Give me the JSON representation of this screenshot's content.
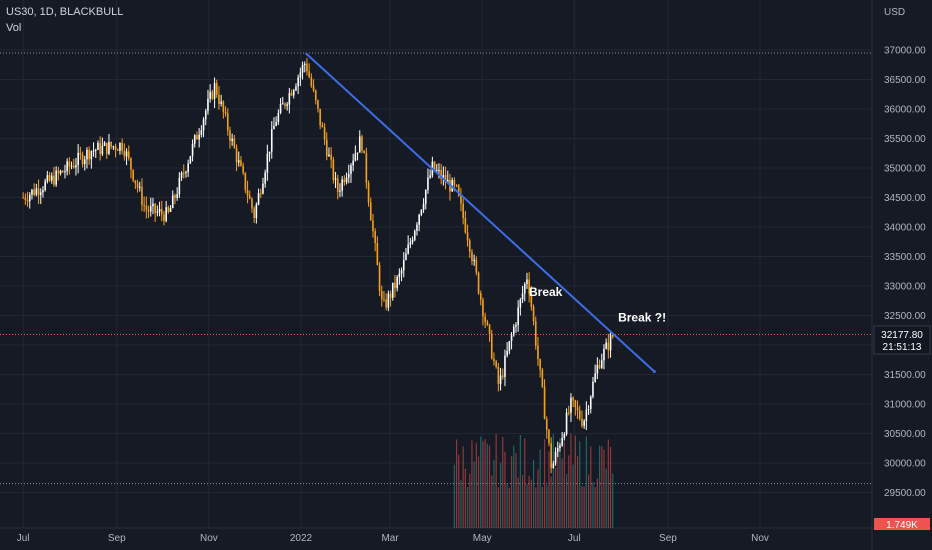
{
  "header": {
    "symbol_line": "US30, 1D, BLACKBULL",
    "volume_label": "Vol"
  },
  "price_axis": {
    "currency": "USD"
  },
  "last_price": {
    "value": "32177.80",
    "countdown": "21:51:13"
  },
  "volume_badge": "1.749K",
  "colors": {
    "background": "#161a25",
    "up": "#ffffff",
    "down": "#f7a21b",
    "trendline": "#3d6ee8",
    "vol_up": "#26a69a",
    "vol_down": "#ef5350"
  },
  "chart_data": {
    "type": "candlestick",
    "x_ticks": [
      "Jul",
      "Sep",
      "Nov",
      "2022",
      "Mar",
      "May",
      "Jul",
      "Sep",
      "Nov"
    ],
    "y_ticks": [
      "37000.00",
      "36500.00",
      "36000.00",
      "35500.00",
      "35000.00",
      "34500.00",
      "34000.00",
      "33500.00",
      "33000.00",
      "32500.00",
      "32000.00",
      "31500.00",
      "31000.00",
      "30500.00",
      "30000.00",
      "29500.00"
    ],
    "ylim": [
      29000,
      37400
    ],
    "price_path": [
      {
        "t": "2021-07-01",
        "p": 34500
      },
      {
        "t": "2021-07-20",
        "p": 34800
      },
      {
        "t": "2021-08-15",
        "p": 35300
      },
      {
        "t": "2021-09-05",
        "p": 35400
      },
      {
        "t": "2021-09-20",
        "p": 34300
      },
      {
        "t": "2021-10-05",
        "p": 34200
      },
      {
        "t": "2021-11-05",
        "p": 36400
      },
      {
        "t": "2021-12-01",
        "p": 34200
      },
      {
        "t": "2021-12-15",
        "p": 35800
      },
      {
        "t": "2022-01-04",
        "p": 36800
      },
      {
        "t": "2022-01-25",
        "p": 34600
      },
      {
        "t": "2022-02-10",
        "p": 35500
      },
      {
        "t": "2022-02-24",
        "p": 32600
      },
      {
        "t": "2022-03-08",
        "p": 33200
      },
      {
        "t": "2022-03-29",
        "p": 35000
      },
      {
        "t": "2022-04-14",
        "p": 34600
      },
      {
        "t": "2022-04-22",
        "p": 33800
      },
      {
        "t": "2022-05-12",
        "p": 31300
      },
      {
        "t": "2022-05-31",
        "p": 33200
      },
      {
        "t": "2022-06-16",
        "p": 29900
      },
      {
        "t": "2022-06-29",
        "p": 31000
      },
      {
        "t": "2022-07-07",
        "p": 30700
      },
      {
        "t": "2022-07-17",
        "p": 31700
      },
      {
        "t": "2022-07-27",
        "p": 32177.8
      }
    ],
    "trendline": {
      "from": {
        "t": "2022-01-04",
        "p": 36950
      },
      "to": {
        "t": "2022-08-23",
        "p": 31550
      }
    },
    "annotations": [
      {
        "text": "Break",
        "t": "2022-06-01",
        "p": 32830
      },
      {
        "text": "Break ?!",
        "t": "2022-07-30",
        "p": 32400
      }
    ],
    "volume_start": "2022-04-12",
    "grid": true
  }
}
